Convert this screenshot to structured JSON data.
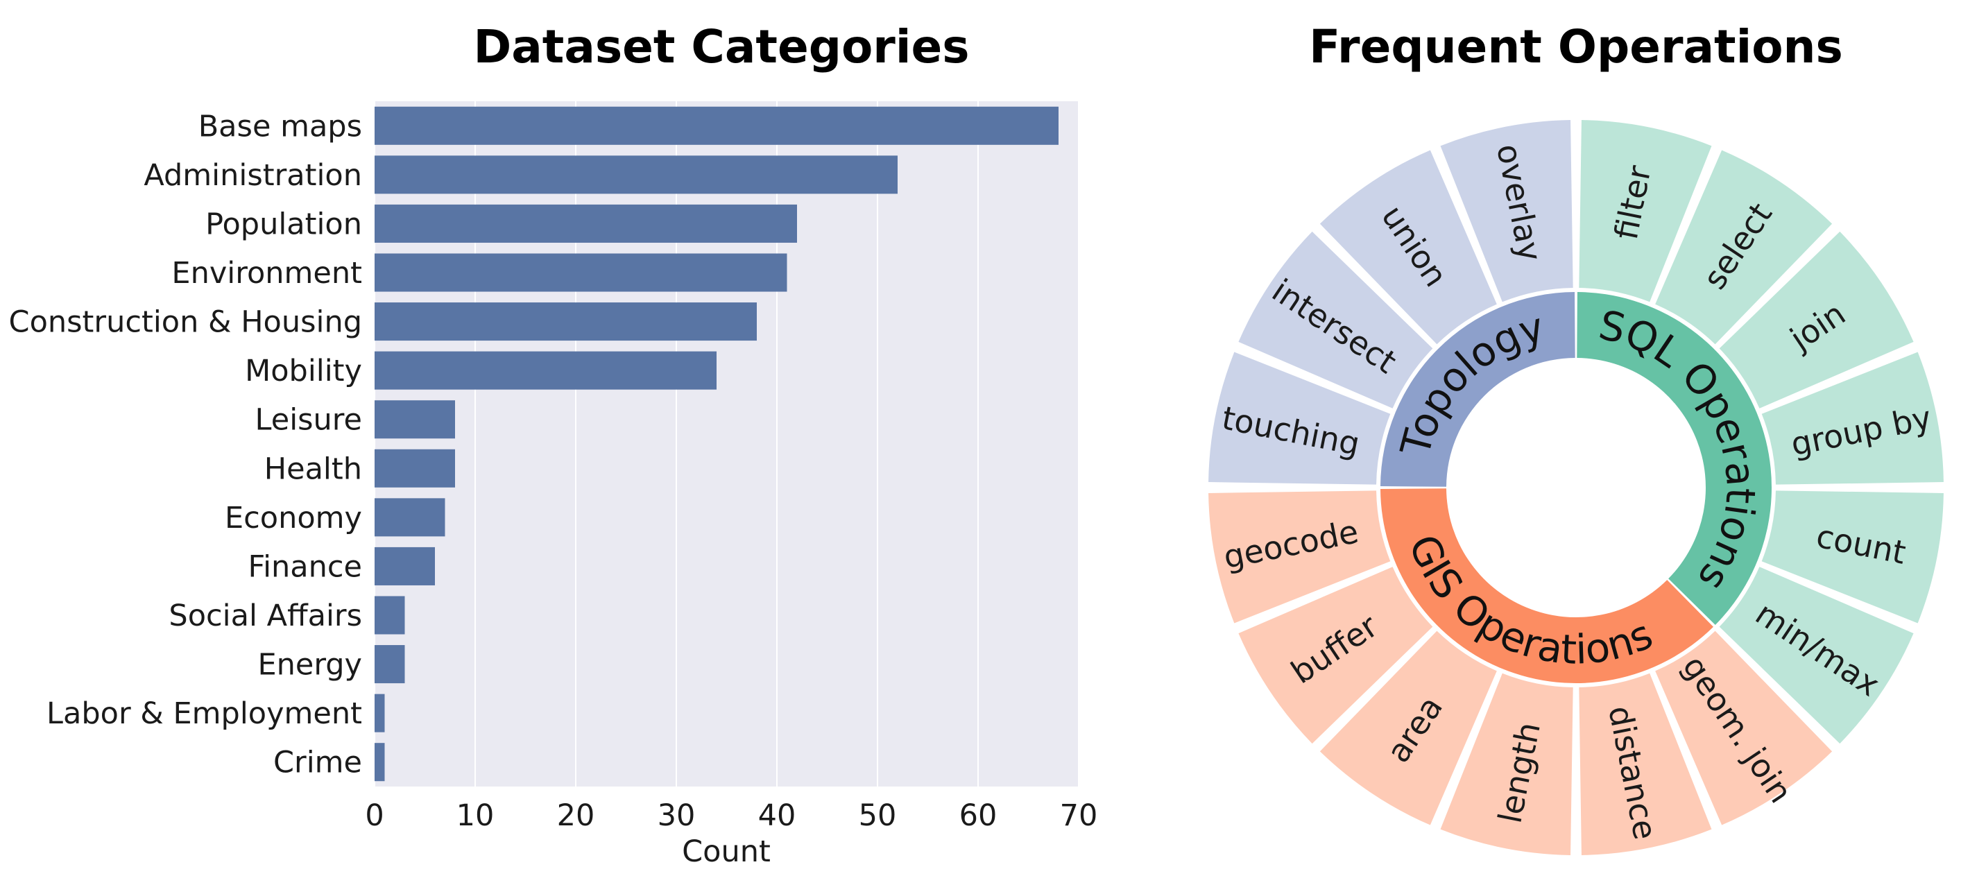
{
  "chart_data": [
    {
      "type": "bar",
      "orientation": "horizontal",
      "title": "Dataset Categories",
      "xlabel": "Count",
      "ylabel": "",
      "xlim": [
        0,
        70
      ],
      "xticks": [
        0,
        10,
        20,
        30,
        40,
        50,
        60,
        70
      ],
      "grid": true,
      "bar_color": "#5975a4",
      "background_color": "#eaeaf2",
      "categories": [
        "Base maps",
        "Administration",
        "Population",
        "Environment",
        "Construction & Housing",
        "Mobility",
        "Leisure",
        "Health",
        "Economy",
        "Finance",
        "Social Affairs",
        "Energy",
        "Labor & Employment",
        "Crime"
      ],
      "values": [
        68,
        52,
        42,
        41,
        38,
        34,
        8,
        8,
        7,
        6,
        3,
        3,
        1,
        1
      ]
    },
    {
      "type": "sunburst",
      "title": "Frequent Operations",
      "groups": [
        {
          "name": "SQL Operations",
          "color": "#66c2a5",
          "child_color": "#bce5d8",
          "children": [
            "filter",
            "select",
            "join",
            "group by",
            "count",
            "min/max"
          ]
        },
        {
          "name": "GIS Operations",
          "color": "#fc8d62",
          "child_color": "#fecbb6",
          "children": [
            "geom. join",
            "distance",
            "length",
            "area",
            "buffer",
            "geocode"
          ]
        },
        {
          "name": "Topology",
          "color": "#8da0cb",
          "child_color": "#cbd3e8",
          "children": [
            "touching",
            "intersect",
            "union",
            "overlay"
          ]
        }
      ]
    }
  ]
}
